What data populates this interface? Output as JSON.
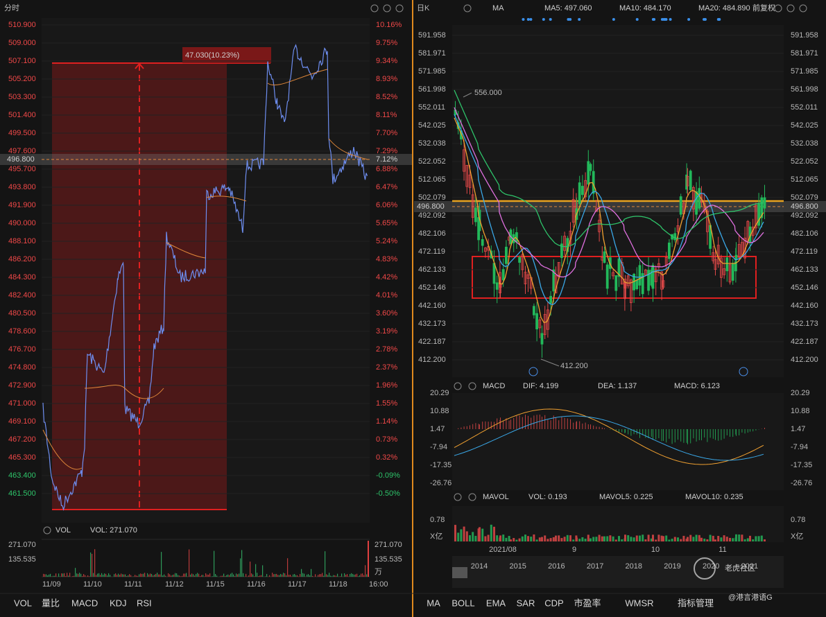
{
  "intraday": {
    "title": "分时",
    "price_labels": [
      "510.900",
      "509.000",
      "507.100",
      "505.200",
      "503.300",
      "501.400",
      "499.500",
      "497.600",
      "495.700",
      "493.800",
      "491.900",
      "490.000",
      "488.100",
      "486.200",
      "484.300",
      "482.400",
      "480.500",
      "478.600",
      "476.700",
      "474.800",
      "472.900",
      "471.000",
      "469.100",
      "467.200",
      "465.300",
      "463.400",
      "461.500"
    ],
    "percent_labels": [
      "10.16%",
      "9.75%",
      "9.34%",
      "8.93%",
      "8.52%",
      "8.11%",
      "7.70%",
      "7.29%",
      "6.88%",
      "6.47%",
      "6.06%",
      "5.65%",
      "5.24%",
      "4.83%",
      "4.42%",
      "4.01%",
      "3.60%",
      "3.19%",
      "2.78%",
      "2.37%",
      "1.96%",
      "1.55%",
      "1.14%",
      "0.73%",
      "0.32%",
      "-0.09%",
      "-0.50%"
    ],
    "current_price": "496.800",
    "current_percent": "7.12%",
    "range_label": "47.030(10.23%)",
    "dates": [
      "11/09",
      "11/10",
      "11/11",
      "11/12",
      "11/15",
      "11/16",
      "11/17",
      "11/18",
      "16:00"
    ],
    "volume": {
      "title": "VOL",
      "value": "VOL: 271.070",
      "labels": [
        "271.070",
        "135.535"
      ],
      "unit": "万"
    },
    "tabs": [
      "VOL",
      "量比",
      "MACD",
      "KDJ",
      "RSI"
    ]
  },
  "daily": {
    "title": "日K",
    "indicator": "MA",
    "ma5": "MA5: 497.060",
    "ma10": "MA10: 484.170",
    "ma20": "MA20: 484.890",
    "adjust": "前复权",
    "price_labels": [
      "591.958",
      "581.971",
      "571.985",
      "561.998",
      "552.011",
      "542.025",
      "532.038",
      "522.052",
      "512.065",
      "502.079",
      "492.092",
      "482.106",
      "472.119",
      "462.133",
      "452.146",
      "442.160",
      "432.173",
      "422.187",
      "412.200"
    ],
    "current_price": "496.800",
    "high_label": "556.000",
    "low_label": "412.200",
    "macd": {
      "title": "MACD",
      "dif": "DIF: 4.199",
      "dea": "DEA: 1.137",
      "macd": "MACD: 6.123",
      "labels": [
        "20.29",
        "10.88",
        "1.47",
        "-7.94",
        "-17.35",
        "-26.76"
      ]
    },
    "mavol": {
      "title": "MAVOL",
      "vol": "VOL: 0.193",
      "mavol5": "MAVOL5: 0.225",
      "mavol10": "MAVOL10: 0.235",
      "labels": [
        "0.78",
        "X亿"
      ]
    },
    "months": [
      "2021/08",
      "9",
      "10",
      "11"
    ],
    "years": [
      "2014",
      "2015",
      "2016",
      "2017",
      "2018",
      "2019",
      "2020",
      "2021"
    ],
    "tabs": [
      "MA",
      "BOLL",
      "EMA",
      "SAR",
      "CDP",
      "市盈率",
      "WMSR",
      "指标管理"
    ],
    "watermark": "老虎社区",
    "author": "@港言港语G"
  }
}
